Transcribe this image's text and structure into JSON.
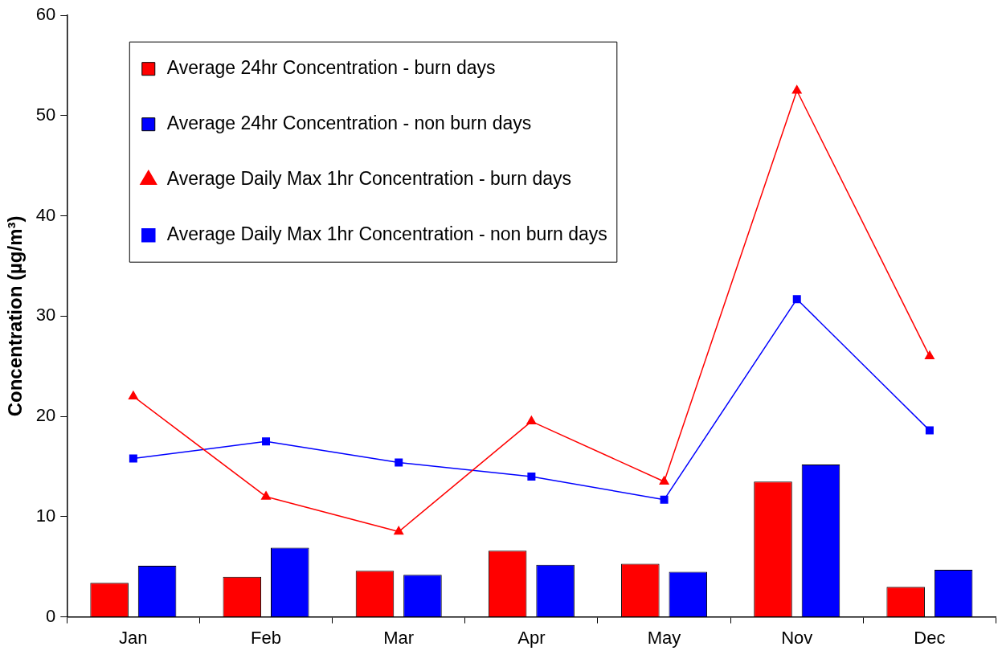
{
  "chart_data": {
    "type": "bar",
    "ylabel": "Concentration (µg/m³)",
    "categories": [
      "Jan",
      "Feb",
      "Mar",
      "Apr",
      "May",
      "Nov",
      "Dec"
    ],
    "series": [
      {
        "name": "Average 24hr Concentration - burn days",
        "color": "#ff0000",
        "values": [
          3.4,
          4.0,
          4.6,
          6.6,
          5.3,
          13.5,
          3.0
        ]
      },
      {
        "name": "Average 24hr Concentration - non burn days",
        "color": "#0000ff",
        "values": [
          5.1,
          6.9,
          4.2,
          5.2,
          4.5,
          15.2,
          4.7
        ]
      },
      {
        "name": "Average Daily Max 1hr Concentration - burn days",
        "type": "line",
        "marker": "triangle",
        "color": "#ff0000",
        "values": [
          22.0,
          12.0,
          8.5,
          19.5,
          13.5,
          52.5,
          26.0
        ]
      },
      {
        "name": "Average Daily Max 1hr Concentration - non burn days",
        "type": "line",
        "marker": "square",
        "color": "#0000ff",
        "values": [
          15.8,
          17.5,
          15.4,
          14.0,
          11.7,
          31.7,
          18.6
        ]
      }
    ],
    "ylim": [
      0,
      60
    ],
    "yticks": [
      0,
      10,
      20,
      30,
      40,
      50,
      60
    ],
    "grid": false,
    "legend": "top left"
  }
}
